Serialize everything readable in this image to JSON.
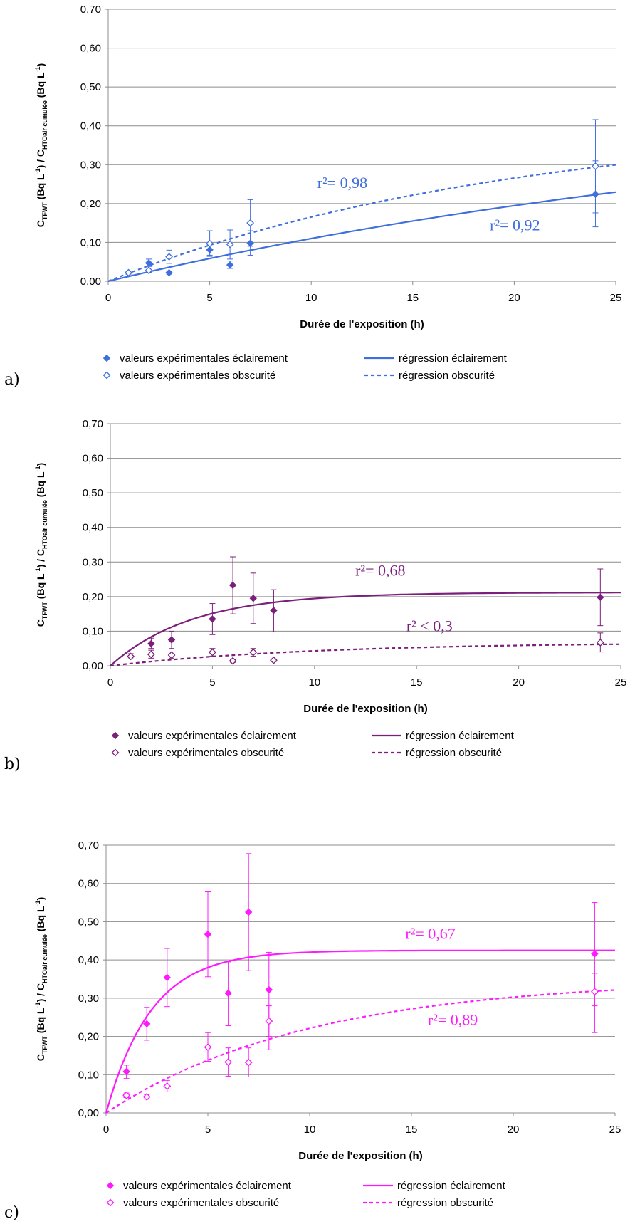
{
  "chart_data": [
    {
      "type": "scatter",
      "panel_label": "a)",
      "color": "#3f6fde",
      "ylabel": {
        "main1": "C",
        "sub1": "TFWT",
        "part2": " (Bq L",
        "sup2": "-1",
        "part3": ") / C",
        "sub3": "HTOair cumulée",
        "part4": " (Bq L",
        "sup4": "-1",
        "part5": ")"
      },
      "xlabel": "Durée de l'exposition (h)",
      "xlim": [
        0,
        25
      ],
      "ylim": [
        0,
        0.7
      ],
      "xticks": [
        "0",
        "5",
        "10",
        "15",
        "20",
        "25"
      ],
      "yticks": [
        "0,00",
        "0,10",
        "0,20",
        "0,30",
        "0,40",
        "0,50",
        "0,60",
        "0,70"
      ],
      "series": [
        {
          "name": "valeurs expérimentales éclairement",
          "kind": "points",
          "filled": true,
          "points": [
            [
              2,
              0.047,
              0.057,
              0.038
            ],
            [
              3,
              0.022,
              0.026,
              0.018
            ],
            [
              5,
              0.081,
              0.096,
              0.067
            ],
            [
              6,
              0.042,
              0.052,
              0.033
            ],
            [
              7,
              0.098,
              0.13,
              0.067
            ],
            [
              24,
              0.224,
              0.31,
              0.14
            ]
          ]
        },
        {
          "name": "valeurs expérimentales obscurité",
          "kind": "points",
          "filled": false,
          "points": [
            [
              1,
              0.022,
              0.026,
              0.018
            ],
            [
              2,
              0.028,
              0.034,
              0.023
            ],
            [
              3,
              0.063,
              0.08,
              0.046
            ],
            [
              5,
              0.097,
              0.13,
              0.064
            ],
            [
              6,
              0.095,
              0.132,
              0.057
            ],
            [
              7,
              0.15,
              0.21,
              0.09
            ],
            [
              24,
              0.296,
              0.416,
              0.176
            ]
          ]
        },
        {
          "name": "régression éclairement",
          "kind": "line",
          "dashed": false,
          "model": {
            "a": 0.48,
            "k": 0.026
          }
        },
        {
          "name": "régression obscurité",
          "kind": "line",
          "dashed": true,
          "model": {
            "a": 0.42,
            "k": 0.05
          }
        }
      ],
      "annotations": [
        {
          "text": "r²= 0,98",
          "x": 10.3,
          "y": 0.24
        },
        {
          "text": "r²= 0,92",
          "x": 18.8,
          "y": 0.131
        }
      ]
    },
    {
      "type": "scatter",
      "panel_label": "b)",
      "color": "#7b1f7b",
      "ylabel": {
        "main1": "C",
        "sub1": "TFWT",
        "part2": " (Bq L",
        "sup2": "-1",
        "part3": ") / C",
        "sub3": "HTOair cumulée",
        "part4": " (Bq L",
        "sup4": "-1",
        "part5": ")"
      },
      "xlabel": "Durée de l'exposition (h)",
      "xlim": [
        0,
        25
      ],
      "ylim": [
        0,
        0.7
      ],
      "xticks": [
        "0",
        "5",
        "10",
        "15",
        "20",
        "25"
      ],
      "yticks": [
        "0,00",
        "0,10",
        "0,20",
        "0,30",
        "0,40",
        "0,50",
        "0,60",
        "0,70"
      ],
      "series": [
        {
          "name": "valeurs expérimentales éclairement",
          "kind": "points",
          "filled": true,
          "points": [
            [
              2,
              0.064,
              0.08,
              0.05
            ],
            [
              3,
              0.075,
              0.1,
              0.05
            ],
            [
              5,
              0.135,
              0.18,
              0.09
            ],
            [
              6,
              0.233,
              0.315,
              0.15
            ],
            [
              7,
              0.195,
              0.268,
              0.122
            ],
            [
              8,
              0.16,
              0.22,
              0.098
            ],
            [
              24,
              0.198,
              0.28,
              0.116
            ]
          ]
        },
        {
          "name": "valeurs expérimentales obscurité",
          "kind": "points",
          "filled": false,
          "points": [
            [
              1,
              0.027,
              0.035,
              0.02
            ],
            [
              2,
              0.033,
              0.045,
              0.022
            ],
            [
              3,
              0.031,
              0.04,
              0.022
            ],
            [
              5,
              0.039,
              0.05,
              0.028
            ],
            [
              6,
              0.014,
              0.018,
              0.01
            ],
            [
              7,
              0.039,
              0.05,
              0.028
            ],
            [
              8,
              0.016,
              0.02,
              0.012
            ],
            [
              24,
              0.067,
              0.095,
              0.04
            ]
          ]
        },
        {
          "name": "régression éclairement",
          "kind": "line",
          "dashed": false,
          "model": {
            "a": 0.212,
            "k": 0.25
          }
        },
        {
          "name": "régression obscurité",
          "kind": "line",
          "dashed": true,
          "model": {
            "a": 0.068,
            "k": 0.1
          }
        }
      ],
      "annotations": [
        {
          "text": "r²= 0,68",
          "x": 12.0,
          "y": 0.26
        },
        {
          "text": "r² < 0,3",
          "x": 14.5,
          "y": 0.1
        }
      ]
    },
    {
      "type": "scatter",
      "panel_label": "c)",
      "color": "#ff19ff",
      "ylabel": {
        "main1": "C",
        "sub1": "TFWT",
        "part2": " (Bq L",
        "sup2": "-1",
        "part3": ") / C",
        "sub3": "HTOair cumulée",
        "part4": " (Bq L",
        "sup4": "-1",
        "part5": ")"
      },
      "xlabel": "Durée de l'exposition (h)",
      "xlim": [
        0,
        25
      ],
      "ylim": [
        0,
        0.7
      ],
      "xticks": [
        "0",
        "5",
        "10",
        "15",
        "20",
        "25"
      ],
      "yticks": [
        "0,00",
        "0,10",
        "0,20",
        "0,30",
        "0,40",
        "0,50",
        "0,60",
        "0,70"
      ],
      "series": [
        {
          "name": "valeurs expérimentales éclairement",
          "kind": "points",
          "filled": true,
          "points": [
            [
              1,
              0.108,
              0.125,
              0.09
            ],
            [
              2,
              0.233,
              0.276,
              0.19
            ],
            [
              3,
              0.354,
              0.43,
              0.278
            ],
            [
              5,
              0.467,
              0.578,
              0.356
            ],
            [
              6,
              0.313,
              0.395,
              0.228
            ],
            [
              7,
              0.525,
              0.678,
              0.372
            ],
            [
              8,
              0.322,
              0.42,
              0.165
            ],
            [
              24,
              0.416,
              0.55,
              0.21
            ]
          ]
        },
        {
          "name": "valeurs expérimentales obscurité",
          "kind": "points",
          "filled": false,
          "points": [
            [
              1,
              0.046,
              0.052,
              0.04
            ],
            [
              2,
              0.042,
              0.048,
              0.036
            ],
            [
              3,
              0.07,
              0.085,
              0.055
            ],
            [
              5,
              0.172,
              0.21,
              0.135
            ],
            [
              6,
              0.133,
              0.17,
              0.096
            ],
            [
              7,
              0.132,
              0.17,
              0.094
            ],
            [
              8,
              0.24,
              0.28,
              0.2
            ],
            [
              24,
              0.317,
              0.365,
              0.28
            ]
          ]
        },
        {
          "name": "régression éclairement",
          "kind": "line",
          "dashed": false,
          "model": {
            "a": 0.425,
            "k": 0.45
          }
        },
        {
          "name": "régression obscurité",
          "kind": "line",
          "dashed": true,
          "model": {
            "a": 0.35,
            "k": 0.1
          }
        }
      ],
      "annotations": [
        {
          "text": "r²= 0,67",
          "x": 14.7,
          "y": 0.455
        },
        {
          "text": "r²= 0,89",
          "x": 15.8,
          "y": 0.23
        }
      ]
    }
  ]
}
